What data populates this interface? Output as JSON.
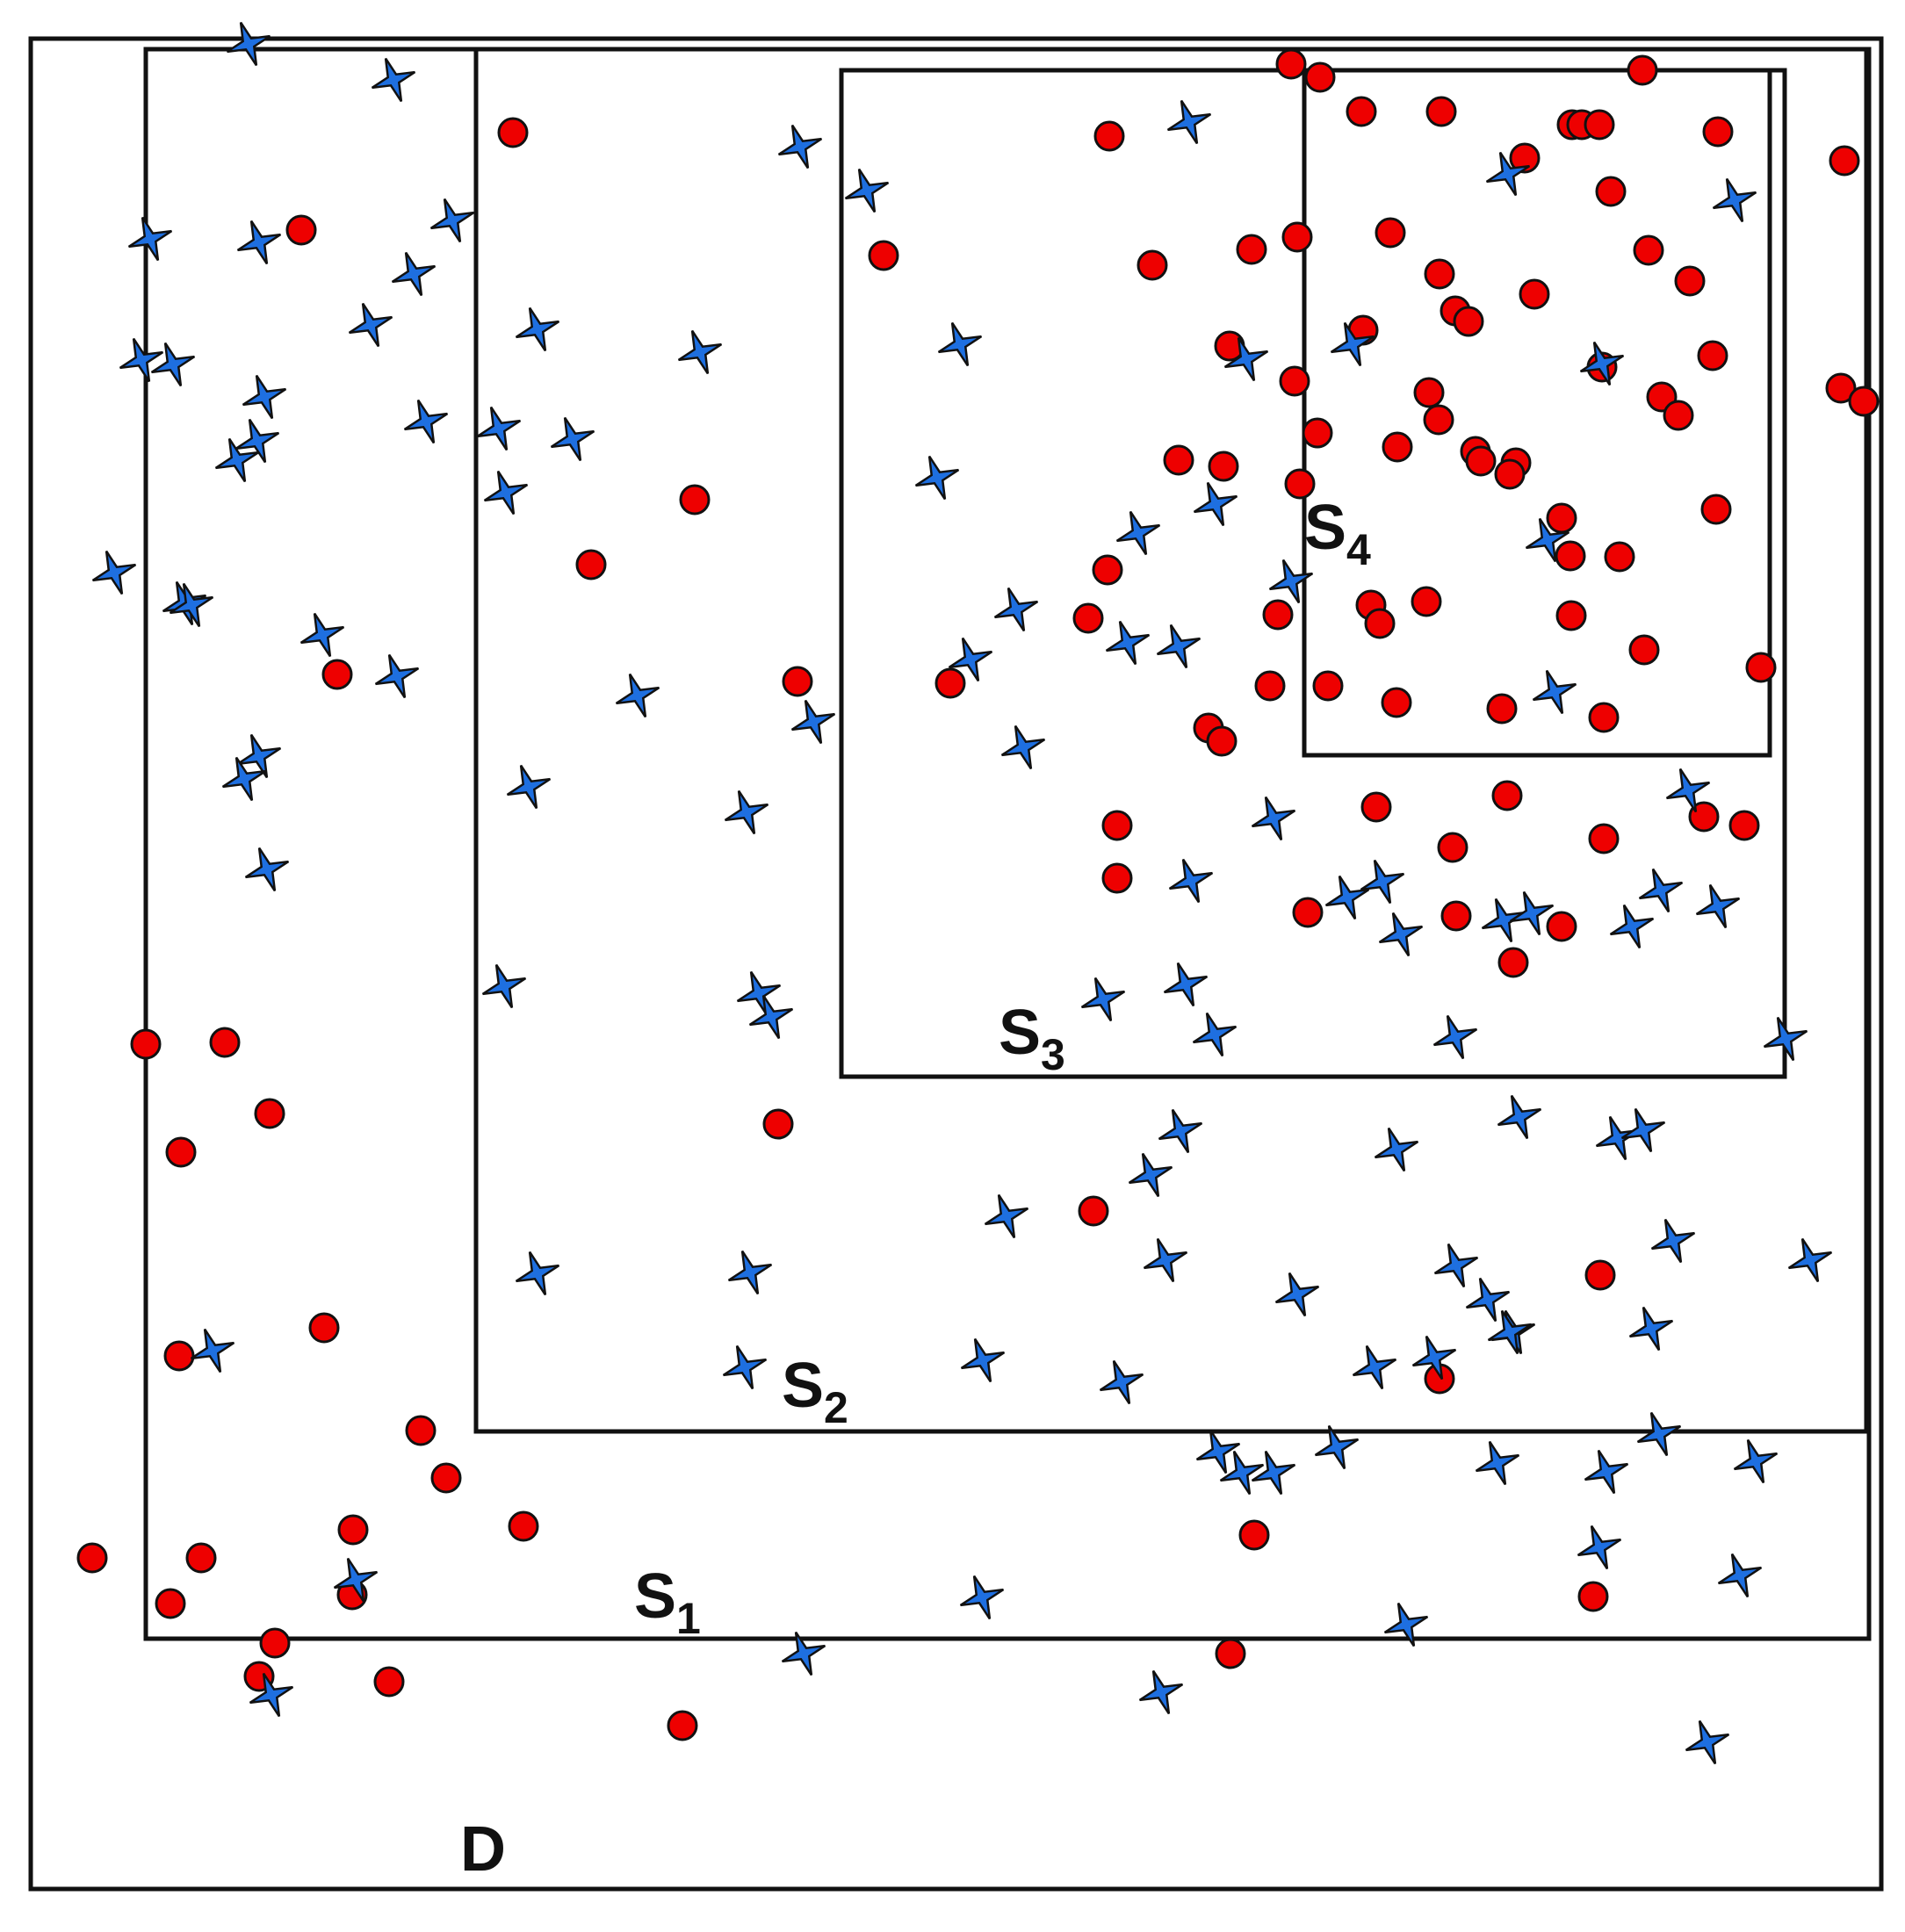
{
  "colors": {
    "circle": "#ee0000",
    "star": "#1e6fe0",
    "outline": "#111111",
    "background": "#ffffff"
  },
  "regions": [
    {
      "id": "D",
      "label_main": "D",
      "label_sub": ""
    },
    {
      "id": "S1",
      "label_main": "S",
      "label_sub": "1"
    },
    {
      "id": "S2",
      "label_main": "S",
      "label_sub": "2"
    },
    {
      "id": "S3",
      "label_main": "S",
      "label_sub": "3"
    },
    {
      "id": "S4",
      "label_main": "S",
      "label_sub": "4"
    }
  ],
  "legend_markers": {
    "circle": "circle-marker",
    "star": "four-point-star-marker"
  }
}
